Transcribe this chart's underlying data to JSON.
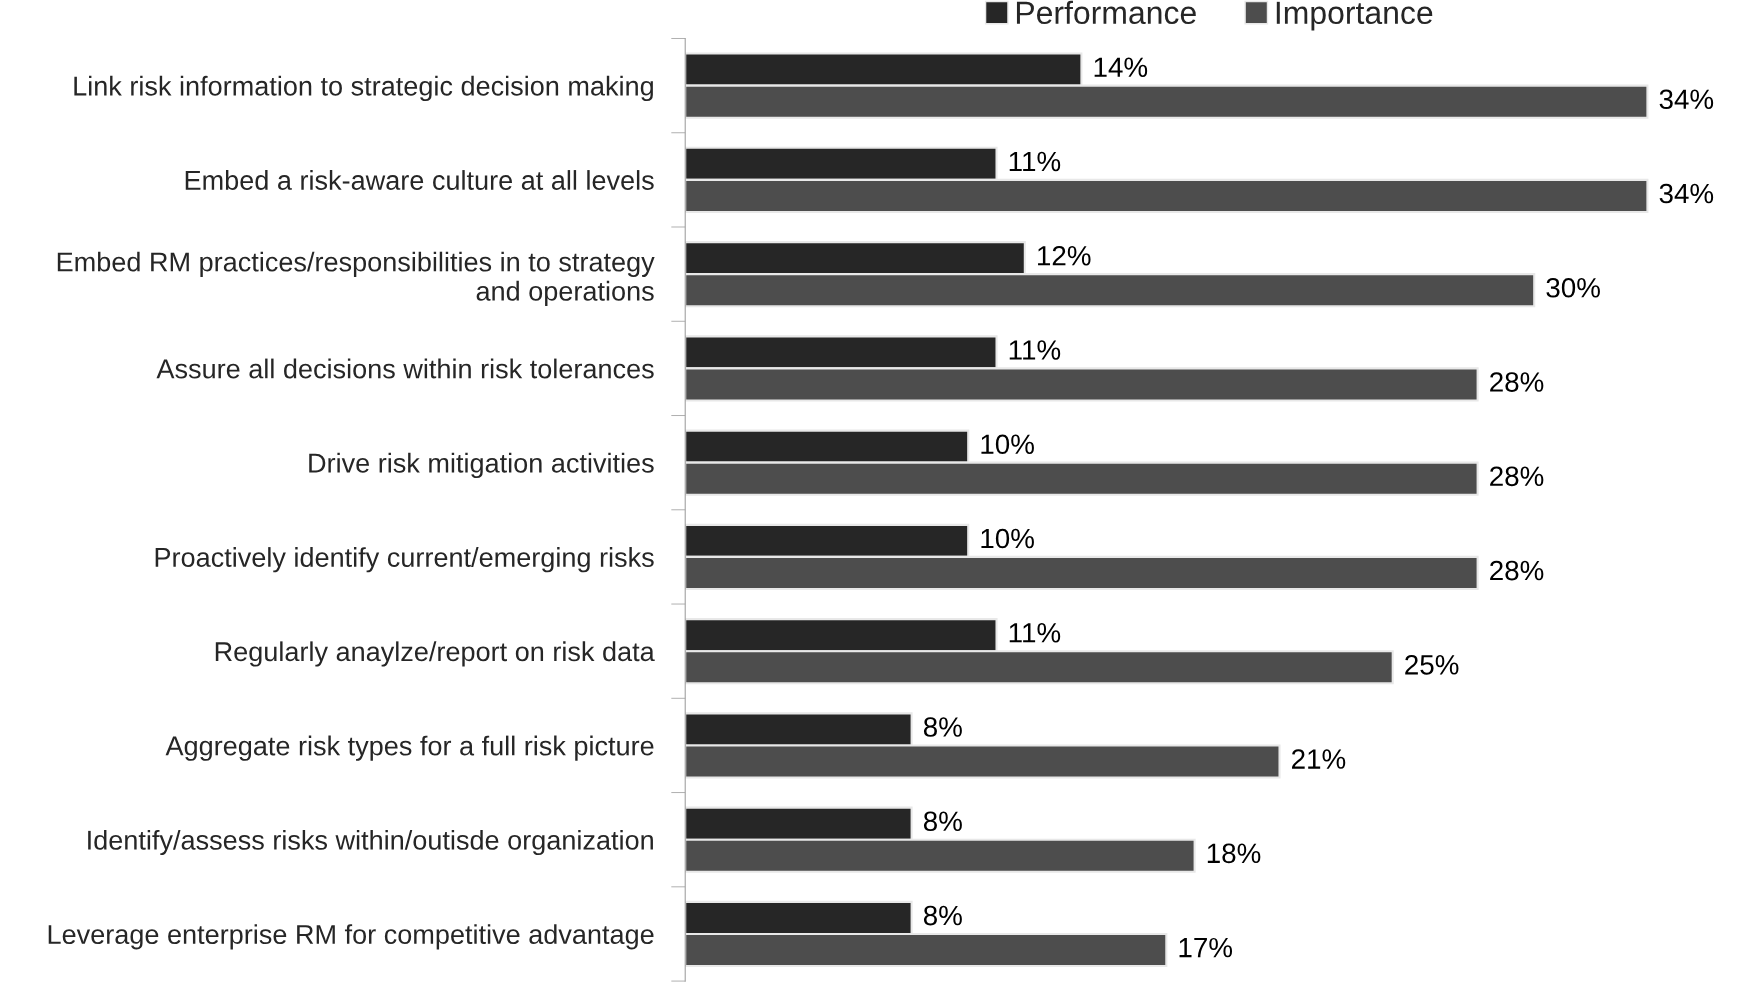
{
  "chart_data": {
    "type": "bar",
    "orientation": "horizontal",
    "categories": [
      "Link risk information to strategic decision making",
      "Embed a risk-aware culture at all levels",
      "Embed RM practices/responsibilities in to strategy\nand operations",
      "Assure all decisions within risk tolerances",
      "Drive risk mitigation activities",
      "Proactively identify current/emerging risks",
      "Regularly anaylze/report on risk data",
      "Aggregate risk types for a full risk picture",
      "Identify/assess risks within/outisde organization",
      "Leverage enterprise RM for competitive advantage"
    ],
    "series": [
      {
        "name": "Performance",
        "color": "#262626",
        "values": [
          14,
          11,
          12,
          11,
          10,
          10,
          11,
          8,
          8,
          8
        ],
        "value_labels": [
          "14%",
          "11%",
          "12%",
          "11%",
          "10%",
          "10%",
          "11%",
          "8%",
          "8%",
          "8%"
        ]
      },
      {
        "name": "Importance",
        "color": "#4d4d4d",
        "values": [
          34,
          34,
          30,
          28,
          28,
          28,
          25,
          21,
          18,
          17
        ],
        "value_labels": [
          "34%",
          "34%",
          "30%",
          "28%",
          "28%",
          "28%",
          "25%",
          "21%",
          "18%",
          "17%"
        ]
      }
    ],
    "legend": "top",
    "grid": false
  }
}
